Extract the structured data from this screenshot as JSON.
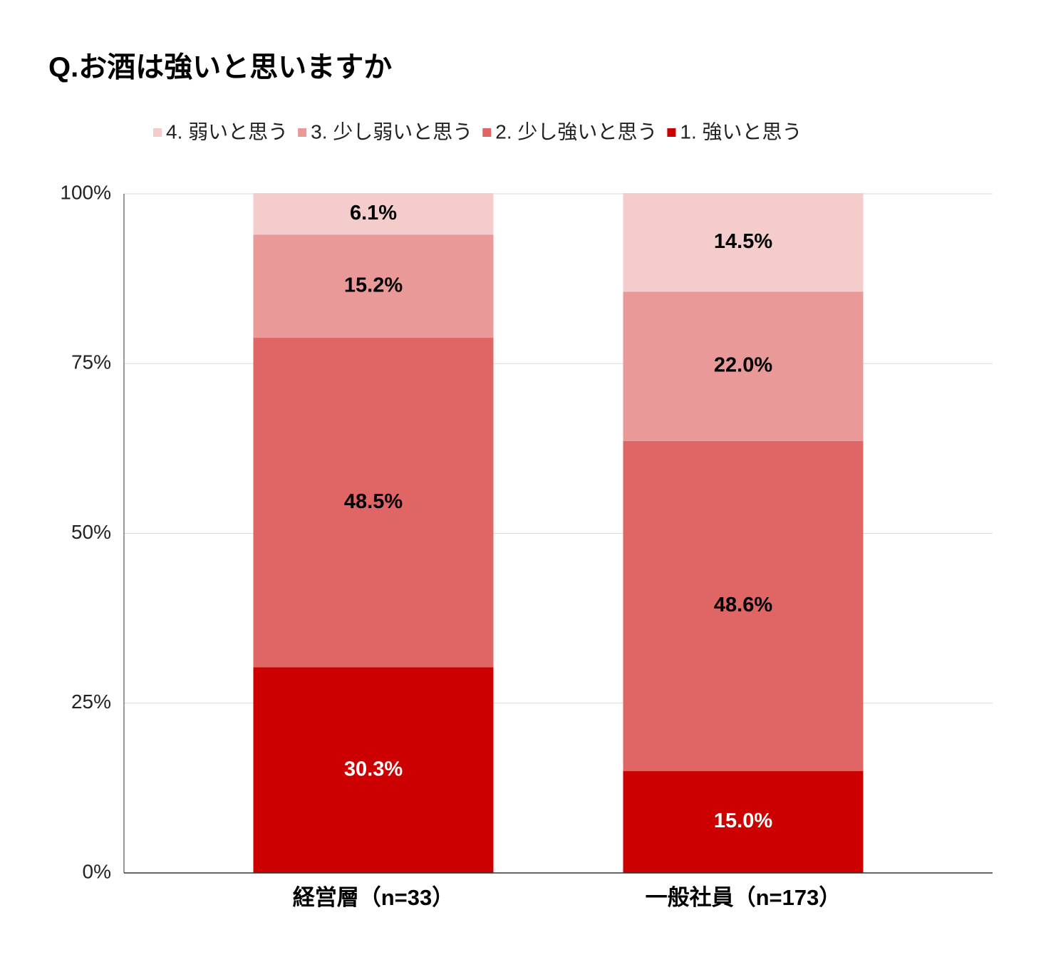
{
  "chart_data": {
    "type": "stacked_bar",
    "title": "Q.お酒は強いと思いますか",
    "categories": [
      "経営層（n=33）",
      "一般社員（n=173）"
    ],
    "series": [
      {
        "name": "1. 強いと思う",
        "color": "#cc0000",
        "label_color": "#ffffff",
        "values": [
          30.3,
          15.0
        ],
        "value_labels": [
          "30.3%",
          "15.0%"
        ]
      },
      {
        "name": "2. 少し強いと思う",
        "color": "#e06666",
        "label_color": "#000000",
        "values": [
          48.5,
          48.6
        ],
        "value_labels": [
          "48.5%",
          "48.6%"
        ]
      },
      {
        "name": "3. 少し弱いと思う",
        "color": "#ea9999",
        "label_color": "#000000",
        "values": [
          15.2,
          22.0
        ],
        "value_labels": [
          "15.2%",
          "22.0%"
        ]
      },
      {
        "name": "4. 弱いと思う",
        "color": "#f4cccc",
        "label_color": "#000000",
        "values": [
          6.1,
          14.5
        ],
        "value_labels": [
          "6.1%",
          "14.5%"
        ]
      }
    ],
    "ylim": [
      0,
      100
    ],
    "yticks": [
      {
        "value": 0,
        "label": "0%"
      },
      {
        "value": 25,
        "label": "25%"
      },
      {
        "value": 50,
        "label": "50%"
      },
      {
        "value": 75,
        "label": "75%"
      },
      {
        "value": 100,
        "label": "100%"
      }
    ],
    "grid": true,
    "legend": "top"
  }
}
